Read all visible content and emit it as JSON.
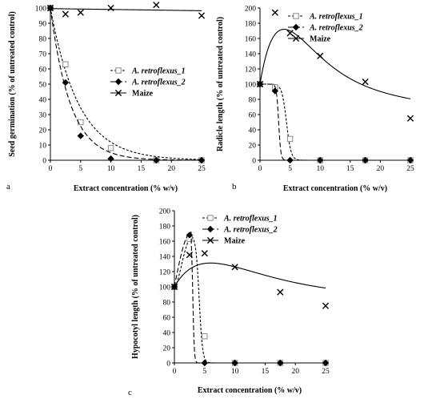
{
  "chart_data": [
    {
      "type": "line",
      "panel_label": "a",
      "xlabel": "Extract concentration (% w/v)",
      "ylabel": "Seed germination (% of untreated control)",
      "xlim": [
        0,
        25
      ],
      "ylim": [
        0,
        100
      ],
      "xticks": [
        0,
        5,
        10,
        15,
        20,
        25
      ],
      "yticks": [
        0,
        10,
        20,
        30,
        40,
        50,
        60,
        70,
        80,
        90,
        100
      ],
      "grid": false,
      "legend_position": "center-right",
      "series": [
        {
          "name": "A. retroflexus_1",
          "marker": "open-square",
          "line": "short-dash",
          "x": [
            0,
            2.5,
            5,
            10,
            17.5,
            25
          ],
          "y": [
            100,
            63,
            25,
            8,
            0,
            0
          ]
        },
        {
          "name": "A. retroflexus_2",
          "marker": "filled-diamond",
          "line": "long-dash",
          "x": [
            0,
            2.5,
            5,
            10,
            17.5,
            25
          ],
          "y": [
            100,
            51,
            16,
            1,
            0,
            0
          ]
        },
        {
          "name": "Maize",
          "marker": "x",
          "line": "solid",
          "x": [
            0,
            2.5,
            5,
            10,
            17.5,
            25
          ],
          "y": [
            100,
            96,
            97,
            100,
            102,
            95
          ]
        }
      ]
    },
    {
      "type": "line",
      "panel_label": "b",
      "xlabel": "Extract concentration (% w/v)",
      "ylabel": "Radicle length (% of untreated control)",
      "xlim": [
        0,
        25
      ],
      "ylim": [
        0,
        200
      ],
      "xticks": [
        0,
        5,
        10,
        15,
        20,
        25
      ],
      "yticks": [
        0,
        20,
        40,
        60,
        80,
        100,
        120,
        140,
        160,
        180,
        200
      ],
      "grid": false,
      "legend_position": "top-right",
      "series": [
        {
          "name": "A. retroflexus_1",
          "marker": "open-square",
          "line": "short-dash",
          "x": [
            0,
            2.5,
            5,
            10,
            17.5,
            25
          ],
          "y": [
            100,
            96,
            28,
            0,
            0,
            0
          ]
        },
        {
          "name": "A. retroflexus_2",
          "marker": "filled-diamond",
          "line": "long-dash",
          "x": [
            0,
            2.5,
            5,
            10,
            17.5,
            25
          ],
          "y": [
            100,
            91,
            0,
            0,
            0,
            0
          ]
        },
        {
          "name": "Maize",
          "marker": "x",
          "line": "solid",
          "x": [
            0,
            2.5,
            5,
            10,
            17.5,
            25
          ],
          "y": [
            100,
            194,
            167,
            137,
            103,
            55
          ]
        }
      ]
    },
    {
      "type": "line",
      "panel_label": "c",
      "xlabel": "Extract concentration (% w/v)",
      "ylabel": "Hypocotyl length (% of untreated control)",
      "xlim": [
        0,
        25
      ],
      "ylim": [
        0,
        200
      ],
      "xticks": [
        0,
        5,
        10,
        15,
        20,
        25
      ],
      "yticks": [
        0,
        20,
        40,
        60,
        80,
        100,
        120,
        140,
        160,
        180,
        200
      ],
      "grid": false,
      "legend_position": "top-right",
      "series": [
        {
          "name": "A. retroflexus_1",
          "marker": "open-square",
          "line": "short-dash",
          "x": [
            0,
            2.5,
            5,
            10,
            17.5,
            25
          ],
          "y": [
            100,
            163,
            35,
            0,
            0,
            0
          ]
        },
        {
          "name": "A. retroflexus_2",
          "marker": "filled-diamond",
          "line": "long-dash",
          "x": [
            0,
            2.5,
            5,
            10,
            17.5,
            25
          ],
          "y": [
            100,
            168,
            0,
            0,
            0,
            0
          ]
        },
        {
          "name": "Maize",
          "marker": "x",
          "line": "solid",
          "x": [
            0,
            2.5,
            5,
            10,
            17.5,
            25
          ],
          "y": [
            100,
            142,
            144,
            126,
            93,
            75
          ]
        }
      ]
    }
  ]
}
